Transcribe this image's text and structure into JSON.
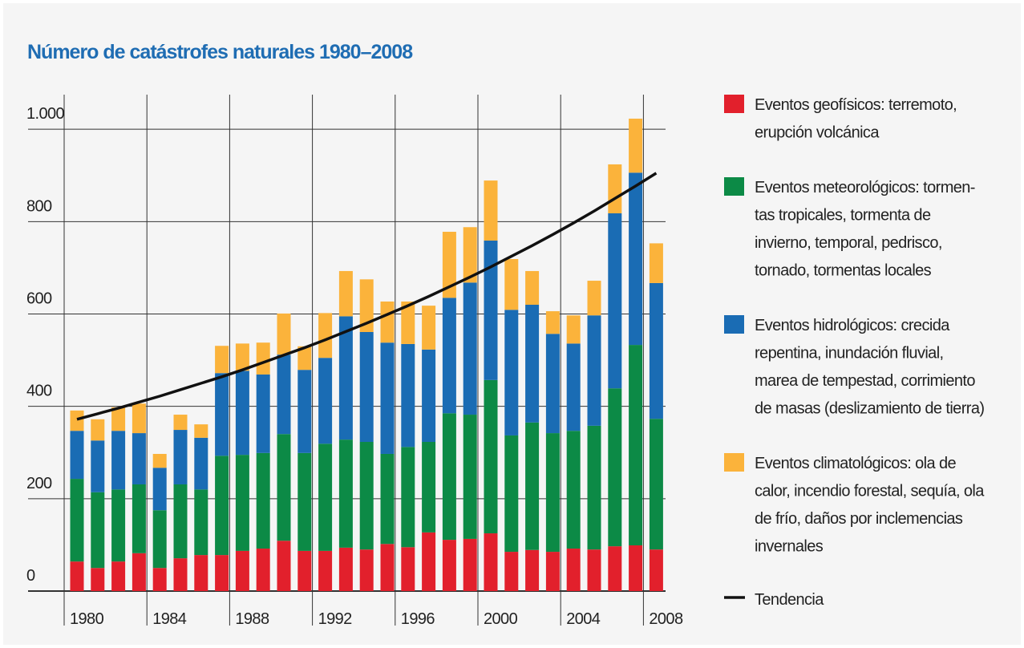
{
  "chart_data": {
    "type": "bar",
    "stacked": true,
    "title": "Número de catástrofes naturales 1980–2008",
    "categories": [
      "1980",
      null,
      null,
      null,
      "1984",
      null,
      null,
      null,
      "1988",
      null,
      null,
      null,
      "1992",
      null,
      null,
      null,
      "1996",
      null,
      null,
      null,
      "2000",
      null,
      null,
      null,
      "2004",
      null,
      null,
      null,
      "2008"
    ],
    "ylim": [
      0,
      1075
    ],
    "yticks": [
      0,
      200,
      400,
      600,
      800,
      {
        "value": 1000,
        "label": "1.000"
      }
    ],
    "grid": true,
    "legend": "right",
    "series": [
      {
        "name": "Eventos geofísicos: terremoto,\nerupción volcánica",
        "color": "#e2202c",
        "values": [
          64,
          50,
          64,
          82,
          50,
          71,
          78,
          78,
          87,
          92,
          109,
          87,
          87,
          94,
          90,
          102,
          95,
          127,
          111,
          113,
          125,
          85,
          89,
          85,
          92,
          90,
          97,
          99,
          90
        ]
      },
      {
        "name": "Eventos meteorológicos: tormen-\ntas tropicales, tormenta de\ninvierno, temporal, pedrisco,\ntornado, tormentas locales",
        "color": "#0c8a46",
        "values": [
          179,
          164,
          156,
          149,
          125,
          160,
          142,
          215,
          208,
          207,
          231,
          212,
          232,
          234,
          233,
          195,
          217,
          196,
          274,
          269,
          332,
          252,
          276,
          257,
          255,
          268,
          342,
          434,
          283
        ]
      },
      {
        "name": "Eventos hidrológicos: crecida\nrepentina, inundación fluvial,\nmarea de tempestad, corrimiento\nde masas (deslizamiento de tierra)",
        "color": "#1a6cb4",
        "values": [
          104,
          112,
          127,
          111,
          92,
          118,
          112,
          179,
          182,
          170,
          172,
          180,
          186,
          267,
          238,
          241,
          223,
          200,
          250,
          286,
          302,
          272,
          255,
          215,
          189,
          239,
          379,
          373,
          294
        ]
      },
      {
        "name": "Eventos climatológicos: ola de\ncalor, incendio forestal, sequía, ola\nde frío, daños por inclemencias\ninvernales",
        "color": "#fbb33b",
        "values": [
          44,
          46,
          51,
          64,
          30,
          33,
          29,
          59,
          59,
          69,
          89,
          51,
          97,
          98,
          114,
          89,
          92,
          95,
          143,
          120,
          130,
          110,
          73,
          49,
          61,
          75,
          106,
          117,
          86
        ]
      },
      {
        "name": "Tendencia",
        "type": "line",
        "color": "#111111",
        "values": [
          372,
          384,
          396,
          409,
          422,
          436,
          450,
          464,
          479,
          495,
          511,
          527,
          544,
          562,
          580,
          599,
          618,
          638,
          659,
          680,
          702,
          725,
          748,
          772,
          797,
          823,
          850,
          877,
          905
        ]
      }
    ]
  }
}
